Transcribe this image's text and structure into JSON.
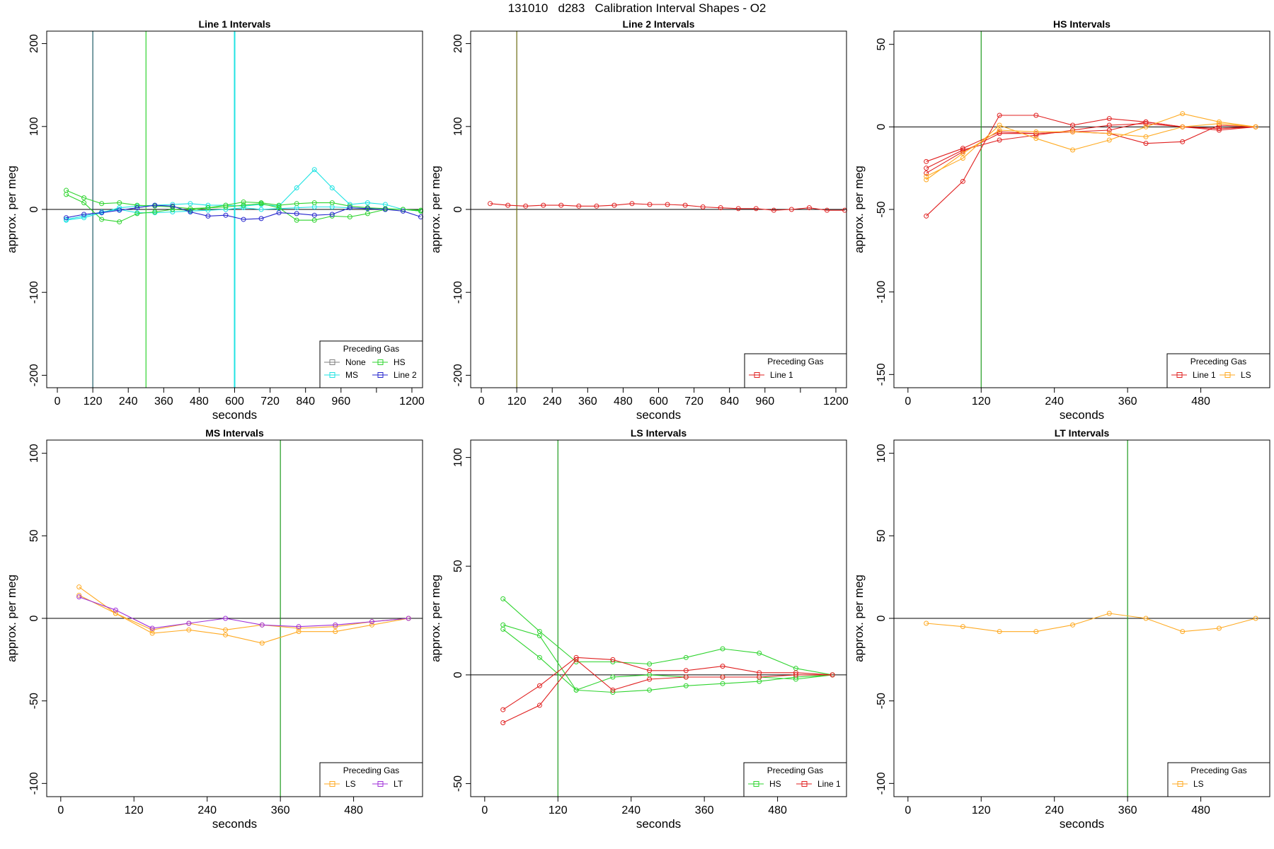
{
  "page_title": "131010   d283   Calibration Interval Shapes - O2",
  "colors": {
    "None": "#7f7f7f",
    "MS": "#1fe3e3",
    "HS": "#2fd42f",
    "Line 2": "#2424cc",
    "Line 1": "#e02020",
    "LS": "#ffaa22",
    "LT": "#a030d8",
    "vline_green": "#1f9a1f",
    "vline_dark": "#1e5a66",
    "vline_olive": "#6a6a10"
  },
  "chart_data": [
    {
      "type": "line",
      "title": "Line 1 Intervals",
      "xlabel": "seconds",
      "ylabel": "approx. per meg",
      "xlim": [
        -36,
        1236
      ],
      "ylim": [
        -215,
        215
      ],
      "xticks": [
        0,
        120,
        240,
        360,
        480,
        600,
        720,
        840,
        960,
        1080,
        1200
      ],
      "xtick_labels": [
        "0",
        "120",
        "240",
        "360",
        "480",
        "600",
        "720",
        "840",
        "960",
        "",
        "1200"
      ],
      "yticks": [
        -200,
        -100,
        0,
        100,
        200
      ],
      "ytick_labels": [
        "-200",
        "-100",
        "0",
        "100",
        "200"
      ],
      "hline": 0,
      "vlines": [
        {
          "x": 120,
          "color": "vline_dark"
        },
        {
          "x": 300,
          "color": "HS"
        },
        {
          "x": 600,
          "color": "MS"
        }
      ],
      "legend": {
        "title": "Preceding Gas",
        "position": "bottom-right",
        "columns": 2,
        "entries": [
          "None",
          "HS",
          "MS",
          "Line 2"
        ]
      },
      "series": [
        {
          "name": "MS",
          "x": [
            30,
            90,
            150,
            210,
            270,
            330,
            390,
            450,
            510,
            570,
            630,
            690,
            750,
            810,
            870,
            930,
            990,
            1050,
            1110,
            1170,
            1230
          ],
          "values": [
            -13,
            -10,
            -4,
            2,
            4,
            5,
            6,
            7,
            5,
            5,
            4,
            6,
            4,
            26,
            48,
            26,
            6,
            8,
            6,
            0,
            -2
          ]
        },
        {
          "name": "MS",
          "x": [
            30,
            90,
            150,
            210,
            270,
            330,
            390,
            450,
            510,
            570,
            630,
            690,
            750,
            810,
            870,
            930,
            990,
            1050,
            1110,
            1170,
            1230
          ],
          "values": [
            -12,
            -8,
            -3,
            0,
            -4,
            -4,
            -3,
            -2,
            -1,
            0,
            2,
            0,
            1,
            2,
            3,
            3,
            2,
            1,
            0,
            0,
            -2
          ]
        },
        {
          "name": "HS",
          "x": [
            30,
            90,
            150,
            210,
            270,
            330,
            390,
            450,
            510,
            570,
            630,
            690,
            750,
            810,
            870,
            930,
            990,
            1050,
            1110,
            1170,
            1230
          ],
          "values": [
            23,
            14,
            7,
            8,
            5,
            4,
            3,
            1,
            2,
            5,
            9,
            8,
            5,
            7,
            8,
            8,
            4,
            2,
            1,
            0,
            -1
          ]
        },
        {
          "name": "HS",
          "x": [
            30,
            90,
            150,
            210,
            270,
            330,
            390,
            450,
            510,
            570,
            630,
            690,
            750,
            810,
            870,
            930,
            990,
            1050,
            1110,
            1170,
            1230
          ],
          "values": [
            18,
            8,
            -12,
            -15,
            -5,
            -3,
            0,
            -1,
            2,
            3,
            5,
            7,
            2,
            -13,
            -13,
            -8,
            -9,
            -5,
            0,
            0,
            -2
          ]
        },
        {
          "name": "Line 2",
          "x": [
            30,
            90,
            150,
            210,
            270,
            330,
            390,
            450,
            510,
            570,
            630,
            690,
            750,
            810,
            870,
            930,
            990,
            1050,
            1110,
            1170,
            1230
          ],
          "values": [
            -10,
            -6,
            -4,
            -1,
            2,
            5,
            4,
            -3,
            -8,
            -7,
            -12,
            -11,
            -4,
            -5,
            -7,
            -6,
            2,
            1,
            0,
            -2,
            -9
          ]
        }
      ]
    },
    {
      "type": "line",
      "title": "Line 2 Intervals",
      "xlabel": "seconds",
      "ylabel": "approx. per meg",
      "xlim": [
        -36,
        1236
      ],
      "ylim": [
        -215,
        215
      ],
      "xticks": [
        0,
        120,
        240,
        360,
        480,
        600,
        720,
        840,
        960,
        1080,
        1200
      ],
      "xtick_labels": [
        "0",
        "120",
        "240",
        "360",
        "480",
        "600",
        "720",
        "840",
        "960",
        "",
        "1200"
      ],
      "yticks": [
        -200,
        -100,
        0,
        100,
        200
      ],
      "ytick_labels": [
        "-200",
        "-100",
        "0",
        "100",
        "200"
      ],
      "hline": 0,
      "vlines": [
        {
          "x": 120,
          "color": "vline_olive"
        }
      ],
      "legend": {
        "title": "Preceding Gas",
        "position": "bottom-right",
        "columns": 1,
        "entries": [
          "Line 1"
        ]
      },
      "series": [
        {
          "name": "Line 1",
          "x": [
            30,
            90,
            150,
            210,
            270,
            330,
            390,
            450,
            510,
            570,
            630,
            690,
            750,
            810,
            870,
            930,
            990,
            1050,
            1110,
            1170,
            1230
          ],
          "values": [
            7,
            5,
            4,
            5,
            5,
            4,
            4,
            5,
            7,
            6,
            6,
            5,
            3,
            2,
            1,
            1,
            -1,
            0,
            2,
            -1,
            -1
          ]
        }
      ]
    },
    {
      "type": "line",
      "title": "HS Intervals",
      "xlabel": "seconds",
      "ylabel": "approx. per meg",
      "xlim": [
        -23,
        593
      ],
      "ylim": [
        -158,
        58
      ],
      "xticks": [
        0,
        120,
        240,
        360,
        480
      ],
      "xtick_labels": [
        "0",
        "120",
        "240",
        "360",
        "480"
      ],
      "yticks": [
        -150,
        -100,
        -50,
        0,
        50
      ],
      "ytick_labels": [
        "-150",
        "-100",
        "-50",
        "0",
        "50"
      ],
      "hline": 0,
      "vlines": [
        {
          "x": 120,
          "color": "vline_green"
        }
      ],
      "legend": {
        "title": "Preceding Gas",
        "position": "bottom-right",
        "columns": 2,
        "entries": [
          "Line 1",
          "LS"
        ]
      },
      "series": [
        {
          "name": "Line 1",
          "x": [
            30,
            90,
            150,
            210,
            270,
            330,
            390,
            450,
            510,
            570
          ],
          "values": [
            -54,
            -33,
            7,
            7,
            1,
            5,
            3,
            0,
            -1,
            0
          ]
        },
        {
          "name": "Line 1",
          "x": [
            30,
            90,
            150,
            210,
            270,
            330,
            390,
            450,
            510,
            570
          ],
          "values": [
            -21,
            -13,
            -3,
            -4,
            -3,
            -4,
            -10,
            -9,
            1,
            0
          ]
        },
        {
          "name": "Line 1",
          "x": [
            30,
            90,
            150,
            210,
            270,
            330,
            390,
            450,
            510,
            570
          ],
          "values": [
            -25,
            -14,
            -8,
            -5,
            -2,
            1,
            2,
            0,
            -1,
            0
          ]
        },
        {
          "name": "Line 1",
          "x": [
            30,
            90,
            150,
            210,
            270,
            330,
            390,
            450,
            510,
            570
          ],
          "values": [
            -28,
            -15,
            -4,
            -4,
            -3,
            -2,
            3,
            0,
            -2,
            0
          ]
        },
        {
          "name": "LS",
          "x": [
            30,
            90,
            150,
            210,
            270,
            330,
            390,
            450,
            510,
            570
          ],
          "values": [
            -30,
            -19,
            1,
            -7,
            -14,
            -8,
            0,
            8,
            3,
            0
          ]
        },
        {
          "name": "LS",
          "x": [
            30,
            90,
            150,
            210,
            270,
            330,
            390,
            450,
            510,
            570
          ],
          "values": [
            -32,
            -16,
            -2,
            -3,
            -3,
            -4,
            -6,
            0,
            2,
            0
          ]
        }
      ]
    },
    {
      "type": "line",
      "title": "MS Intervals",
      "xlabel": "seconds",
      "ylabel": "approx. per meg",
      "xlim": [
        -23,
        593
      ],
      "ylim": [
        -108,
        108
      ],
      "xticks": [
        0,
        120,
        240,
        360,
        480
      ],
      "xtick_labels": [
        "0",
        "120",
        "240",
        "360",
        "480"
      ],
      "yticks": [
        -100,
        -50,
        0,
        50,
        100
      ],
      "ytick_labels": [
        "-100",
        "-50",
        "0",
        "50",
        "100"
      ],
      "hline": 0,
      "vlines": [
        {
          "x": 360,
          "color": "vline_green"
        }
      ],
      "legend": {
        "title": "Preceding Gas",
        "position": "bottom-right",
        "columns": 2,
        "entries": [
          "LS",
          "LT"
        ]
      },
      "series": [
        {
          "name": "LS",
          "x": [
            30,
            90,
            150,
            210,
            270,
            330,
            390,
            450,
            510,
            570
          ],
          "values": [
            19,
            3,
            -9,
            -7,
            -10,
            -15,
            -8,
            -8,
            -4,
            0
          ]
        },
        {
          "name": "LS",
          "x": [
            30,
            90,
            150,
            210,
            270,
            330,
            390,
            450,
            510,
            570
          ],
          "values": [
            14,
            3,
            -7,
            -3,
            -7,
            -4,
            -6,
            -5,
            -2,
            0
          ]
        },
        {
          "name": "LT",
          "x": [
            30,
            90,
            150,
            210,
            270,
            330,
            390,
            450,
            510,
            570
          ],
          "values": [
            13,
            5,
            -6,
            -3,
            0,
            -4,
            -5,
            -4,
            -2,
            0
          ]
        }
      ]
    },
    {
      "type": "line",
      "title": "LS Intervals",
      "xlabel": "seconds",
      "ylabel": "approx. per meg",
      "xlim": [
        -23,
        593
      ],
      "ylim": [
        -56,
        108
      ],
      "xticks": [
        0,
        120,
        240,
        360,
        480
      ],
      "xtick_labels": [
        "0",
        "120",
        "240",
        "360",
        "480"
      ],
      "yticks": [
        -50,
        0,
        50,
        100
      ],
      "ytick_labels": [
        "-50",
        "0",
        "50",
        "100"
      ],
      "hline": 0,
      "vlines": [
        {
          "x": 120,
          "color": "vline_green"
        }
      ],
      "legend": {
        "title": "Preceding Gas",
        "position": "bottom-right",
        "columns": 2,
        "entries": [
          "HS",
          "Line 1"
        ]
      },
      "series": [
        {
          "name": "HS",
          "x": [
            30,
            90,
            150,
            210,
            270,
            330,
            390,
            450,
            510,
            570
          ],
          "values": [
            35,
            20,
            6,
            6,
            5,
            8,
            12,
            10,
            3,
            0
          ]
        },
        {
          "name": "HS",
          "x": [
            30,
            90,
            150,
            210,
            270,
            330,
            390,
            450,
            510,
            570
          ],
          "values": [
            23,
            18,
            -7,
            -8,
            -7,
            -5,
            -4,
            -3,
            -1,
            0
          ]
        },
        {
          "name": "HS",
          "x": [
            30,
            90,
            150,
            210,
            270,
            330,
            390,
            450,
            510,
            570
          ],
          "values": [
            21,
            8,
            -7,
            -1,
            0,
            -1,
            -1,
            -1,
            -2,
            0
          ]
        },
        {
          "name": "Line 1",
          "x": [
            30,
            90,
            150,
            210,
            270,
            330,
            390,
            450,
            510,
            570
          ],
          "values": [
            -16,
            -5,
            8,
            7,
            2,
            2,
            4,
            1,
            1,
            0
          ]
        },
        {
          "name": "Line 1",
          "x": [
            30,
            90,
            150,
            210,
            270,
            330,
            390,
            450,
            510,
            570
          ],
          "values": [
            -22,
            -14,
            7,
            -7,
            -2,
            -1,
            -1,
            -1,
            0,
            0
          ]
        }
      ]
    },
    {
      "type": "line",
      "title": "LT Intervals",
      "xlabel": "seconds",
      "ylabel": "approx. per meg",
      "xlim": [
        -23,
        593
      ],
      "ylim": [
        -108,
        108
      ],
      "xticks": [
        0,
        120,
        240,
        360,
        480
      ],
      "xtick_labels": [
        "0",
        "120",
        "240",
        "360",
        "480"
      ],
      "yticks": [
        -100,
        -50,
        0,
        50,
        100
      ],
      "ytick_labels": [
        "-100",
        "-50",
        "0",
        "50",
        "100"
      ],
      "hline": 0,
      "vlines": [
        {
          "x": 360,
          "color": "vline_green"
        }
      ],
      "legend": {
        "title": "Preceding Gas",
        "position": "bottom-right",
        "columns": 1,
        "entries": [
          "LS"
        ]
      },
      "series": [
        {
          "name": "LS",
          "x": [
            30,
            90,
            150,
            210,
            270,
            330,
            390,
            450,
            510,
            570
          ],
          "values": [
            -3,
            -5,
            -8,
            -8,
            -4,
            3,
            0,
            -8,
            -6,
            0
          ]
        }
      ]
    }
  ]
}
